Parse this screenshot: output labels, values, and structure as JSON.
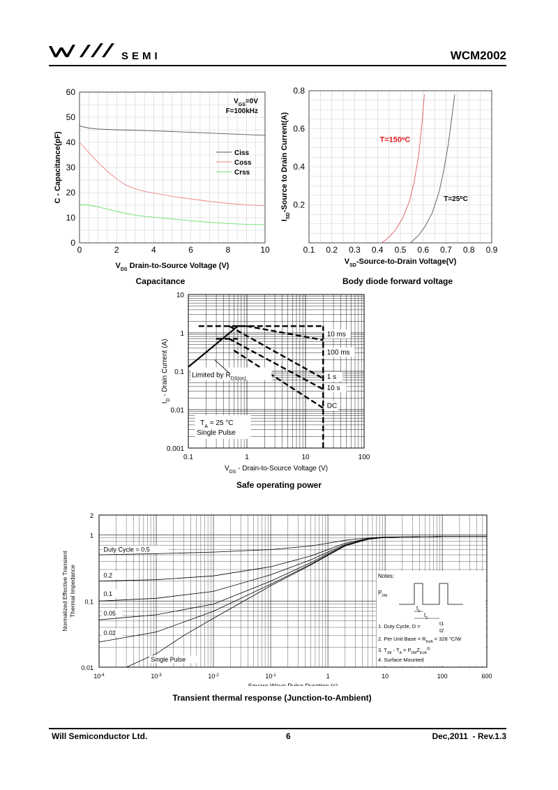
{
  "header": {
    "brand": "SEMI",
    "part_number": "WCM2002"
  },
  "footer": {
    "company": "Will Semiconductor Ltd.",
    "page": "6",
    "revision": "Dec,2011  - Rev.1.3"
  },
  "captions": {
    "capacitance": "Capacitance",
    "body_diode": "Body diode forward voltage",
    "soa": "Safe operating power",
    "thermal": "Transient thermal response (Junction-to-Ambient)"
  },
  "chart_data": [
    {
      "id": "capacitance",
      "type": "line",
      "xlabel_main": "V",
      "xlabel_sub": "DS",
      "xlabel_rest": " Drain-to-Source Voltage (V)",
      "ylabel": "C - Capacitance(pF)",
      "xlim": [
        0,
        10
      ],
      "ylim": [
        0,
        60
      ],
      "xticks": [
        "0",
        "2",
        "4",
        "6",
        "8",
        "10"
      ],
      "yticks": [
        "0",
        "10",
        "20",
        "30",
        "40",
        "50",
        "60"
      ],
      "grid": true,
      "annotation_line1_main": "V",
      "annotation_line1_sub": "GS",
      "annotation_line1_rest": "=0V",
      "annotation_line2": "F=100kHz",
      "series": [
        {
          "name": "Ciss",
          "color": "#555555",
          "x": [
            0,
            0.5,
            1,
            2,
            3,
            4,
            5,
            6,
            7,
            8,
            9,
            10
          ],
          "y": [
            46.5,
            45.7,
            45.3,
            45.0,
            44.8,
            44.6,
            44.3,
            44.0,
            43.7,
            43.4,
            43.1,
            42.8
          ]
        },
        {
          "name": "Coss",
          "color": "#f08080",
          "x": [
            0,
            0.5,
            1,
            1.5,
            2,
            2.5,
            3,
            3.5,
            4,
            5,
            6,
            7,
            8,
            9,
            10
          ],
          "y": [
            40,
            36,
            32,
            28.5,
            25.5,
            23,
            21.5,
            20.5,
            19.8,
            18.5,
            17.5,
            16.5,
            15.7,
            15.1,
            14.8
          ]
        },
        {
          "name": "Crss",
          "color": "#6adf6a",
          "x": [
            0,
            0.5,
            1,
            2,
            3,
            4,
            5,
            6,
            7,
            8,
            9,
            10
          ],
          "y": [
            15.3,
            15.0,
            14.3,
            12.5,
            11,
            10.2,
            9.5,
            8.8,
            8.2,
            7.7,
            7.4,
            7.2
          ]
        }
      ]
    },
    {
      "id": "body_diode",
      "type": "line",
      "xlabel_main": "V",
      "xlabel_sub": "SD",
      "xlabel_rest": "-Source-to-Drain Voltage(V)",
      "ylabel_main": "I",
      "ylabel_sub": "SD",
      "ylabel_rest": "-Source to Drain Current(A)",
      "xlim": [
        0.1,
        0.9
      ],
      "ylim": [
        0.0,
        0.8
      ],
      "xticks": [
        "0.1",
        "0.2",
        "0.3",
        "0.4",
        "0.5",
        "0.6",
        "0.7",
        "0.8",
        "0.9"
      ],
      "yticks": [
        "0.2",
        "0.4",
        "0.6",
        "0.8"
      ],
      "grid": true,
      "series": [
        {
          "name": "T=150°C",
          "color": "#e05a5a",
          "x": [
            0.42,
            0.45,
            0.48,
            0.51,
            0.54,
            0.56,
            0.58,
            0.595,
            0.605
          ],
          "y": [
            0.0,
            0.03,
            0.07,
            0.13,
            0.22,
            0.32,
            0.46,
            0.63,
            0.78
          ]
        },
        {
          "name": "T=25°C",
          "color": "#555555",
          "x": [
            0.545,
            0.58,
            0.61,
            0.64,
            0.67,
            0.69,
            0.71,
            0.725,
            0.738
          ],
          "y": [
            0.0,
            0.04,
            0.09,
            0.16,
            0.27,
            0.38,
            0.52,
            0.66,
            0.78
          ]
        }
      ],
      "labels": [
        {
          "text_main": "T=150",
          "text_sup": "o",
          "text_rest": "C",
          "color": "#e02020"
        },
        {
          "text_main": "T=25",
          "text_sup": "o",
          "text_rest": "C",
          "color": "#000000"
        }
      ]
    },
    {
      "id": "soa",
      "type": "line",
      "xscale": "log",
      "yscale": "log",
      "xlim": [
        0.1,
        100
      ],
      "ylim": [
        0.001,
        10
      ],
      "xticks": [
        "0.1",
        "1",
        "10",
        "100"
      ],
      "yticks": [
        "0.001",
        "0.01",
        "0.1",
        "1",
        "10"
      ],
      "xlabel_main": "V",
      "xlabel_sub": "DS",
      "xlabel_rest": " - Drain-to-Source Voltage (V)",
      "ylabel_main": "I",
      "ylabel_sub": "D",
      "ylabel_rest": " - Drain Current (A)",
      "grid": true,
      "limit_line": {
        "x": [
          0.1,
          0.7
        ],
        "y": [
          0.13,
          1.5
        ]
      },
      "series": [
        {
          "name": "10 ms",
          "x": [
            0.15,
            20
          ],
          "y": [
            1.5,
            1.5
          ]
        },
        {
          "name": "100 ms",
          "x": [
            0.7,
            1.0,
            20
          ],
          "y": [
            1.5,
            1.5,
            0.65
          ]
        },
        {
          "name": "1 s",
          "x": [
            0.5,
            20
          ],
          "y": [
            1.5,
            0.065
          ]
        },
        {
          "name": "10 s",
          "x": [
            0.5,
            20
          ],
          "y": [
            0.7,
            0.034
          ]
        },
        {
          "name": "DC",
          "x": [
            0.6,
            20
          ],
          "y": [
            0.35,
            0.011
          ]
        },
        {
          "name": "DC-horizontal",
          "x": [
            0.3,
            0.7
          ],
          "y": [
            0.7,
            0.7
          ]
        }
      ],
      "vertical_limit": {
        "x": 20,
        "y": [
          0.001,
          1.5
        ]
      },
      "legend_labels": [
        "10 ms",
        "100 ms",
        "1 s",
        "10 s",
        "DC"
      ],
      "annotation_limit_main": "Limited by R",
      "annotation_limit_sub": "DS(on)",
      "annotation_ta_main": "T",
      "annotation_ta_sub": "A",
      "annotation_ta_rest": " = 25 °C",
      "annotation_pulse": "Single Pulse"
    },
    {
      "id": "thermal",
      "type": "line",
      "xscale": "log",
      "yscale": "log",
      "xlim": [
        0.0001,
        600
      ],
      "ylim": [
        0.01,
        2
      ],
      "xticks": [
        {
          "base": "10",
          "exp": "-4",
          "v": 0.0001
        },
        {
          "base": "10",
          "exp": "-3",
          "v": 0.001
        },
        {
          "base": "10",
          "exp": "-2",
          "v": 0.01
        },
        {
          "base": "10",
          "exp": "-1",
          "v": 0.1
        },
        {
          "base": "1",
          "exp": "",
          "v": 1
        },
        {
          "base": "10",
          "exp": "",
          "v": 10
        },
        {
          "base": "100",
          "exp": "",
          "v": 100
        },
        {
          "base": "600",
          "exp": "",
          "v": 600
        }
      ],
      "yticks": [
        {
          "t": "0.01",
          "v": 0.01
        },
        {
          "t": "0.1",
          "v": 0.1
        },
        {
          "t": "1",
          "v": 1
        },
        {
          "t": "2",
          "v": 2
        }
      ],
      "xlabel": "Square Wave Pulse Duration (s)",
      "ylabel_line1": "Normalized Effective Transient",
      "ylabel_line2": "Thermal Impedance",
      "grid": true,
      "series": [
        {
          "name": "Duty Cycle = 0.5",
          "x": [
            0.0001,
            0.001,
            0.01,
            0.1,
            0.5,
            1,
            2,
            5,
            10,
            100,
            600
          ],
          "y": [
            0.5,
            0.52,
            0.55,
            0.6,
            0.68,
            0.75,
            0.83,
            0.9,
            0.93,
            0.95,
            0.95
          ]
        },
        {
          "name": "0.2",
          "x": [
            0.0001,
            0.001,
            0.01,
            0.1,
            0.5,
            1,
            2,
            5,
            10,
            100,
            600
          ],
          "y": [
            0.2,
            0.21,
            0.24,
            0.33,
            0.48,
            0.6,
            0.75,
            0.88,
            0.92,
            0.95,
            0.95
          ]
        },
        {
          "name": "0.1",
          "x": [
            0.0001,
            0.001,
            0.01,
            0.1,
            0.5,
            1,
            2,
            5,
            10,
            100,
            600
          ],
          "y": [
            0.1,
            0.11,
            0.14,
            0.25,
            0.42,
            0.55,
            0.72,
            0.87,
            0.92,
            0.95,
            0.95
          ]
        },
        {
          "name": "0.05",
          "x": [
            0.0001,
            0.001,
            0.01,
            0.1,
            0.5,
            1,
            2,
            5,
            10,
            100,
            600
          ],
          "y": [
            0.052,
            0.062,
            0.09,
            0.2,
            0.38,
            0.52,
            0.7,
            0.86,
            0.92,
            0.95,
            0.95
          ]
        },
        {
          "name": "0.02",
          "x": [
            0.0001,
            0.001,
            0.01,
            0.1,
            0.5,
            1,
            2,
            5,
            10,
            100,
            600
          ],
          "y": [
            0.024,
            0.034,
            0.07,
            0.18,
            0.36,
            0.5,
            0.69,
            0.86,
            0.92,
            0.95,
            0.95
          ]
        },
        {
          "name": "Single Pulse",
          "x": [
            0.0003,
            0.001,
            0.003,
            0.01,
            0.1,
            0.5,
            1,
            2,
            5,
            10,
            100,
            600
          ],
          "y": [
            0.01,
            0.016,
            0.03,
            0.055,
            0.17,
            0.35,
            0.49,
            0.68,
            0.86,
            0.92,
            0.95,
            0.95
          ]
        }
      ],
      "notes": {
        "title": "Notes:",
        "pdm_main": "P",
        "pdm_sub": "DM",
        "t1": "t",
        "t1_sub": "1",
        "t2": "t",
        "t2_sub": "2",
        "note1": "1. Duty Cycle, D =",
        "note1_num": "t1",
        "note1_den": "t2",
        "note2_main": "2. Per Unit Base = R",
        "note2_sub": "thJA",
        "note2_rest": " = 328 °C/W",
        "note3_a": "3. T",
        "note3_sub1": "JM",
        "note3_b": " - T",
        "note3_sub2": "A",
        "note3_c": " = P",
        "note3_sub3": "DM",
        "note3_d": "Z",
        "note3_sub4": "thJA",
        "note3_sup": "(t)",
        "note4": "4. Surface Mounted"
      }
    }
  ]
}
